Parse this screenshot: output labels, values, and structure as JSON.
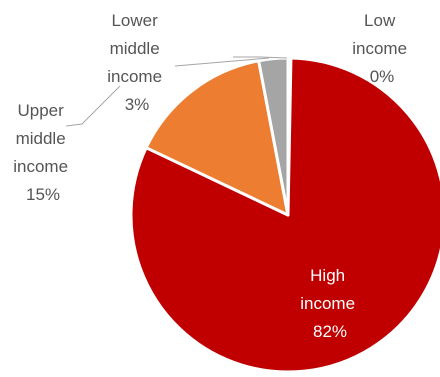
{
  "chart_data": {
    "type": "pie",
    "slices": [
      {
        "label_lines": [
          "Low",
          "income"
        ],
        "pct_label": "0%",
        "value": 0.3,
        "color": "#7f7f7f"
      },
      {
        "label_lines": [
          "High",
          "income"
        ],
        "pct_label": "82%",
        "value": 82,
        "color": "#c00000"
      },
      {
        "label_lines": [
          "Upper",
          "middle",
          "income"
        ],
        "pct_label": "15%",
        "value": 15,
        "color": "#ed7d31"
      },
      {
        "label_lines": [
          "Lower",
          "middle",
          "income"
        ],
        "pct_label": "3%",
        "value": 3,
        "color": "#a5a5a5"
      }
    ],
    "start_angle_deg": 0,
    "direction": "clockwise",
    "legend": "none"
  }
}
